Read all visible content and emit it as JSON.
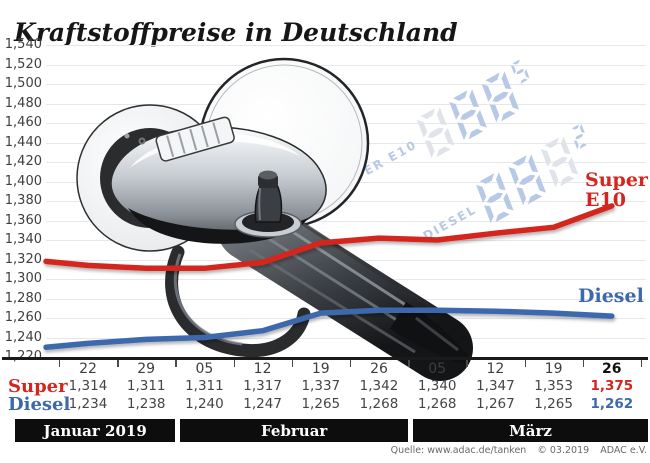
{
  "title": "Kraftstoffpreise in Deutschland",
  "source": {
    "quelle": "Quelle: www.adac.de/tanken",
    "copyright": "© 03.2019",
    "org": "ADAC e.V."
  },
  "colors": {
    "super_red": "#d4251e",
    "diesel_blue": "#3c68ad",
    "grid": "#e6e7e8",
    "month_band": "#0d0d0d",
    "axis": "#1a1a1a",
    "watermark_blue": "#b7c9e7",
    "watermark_gray": "#e0e4ea",
    "text_dark": "#3f3f3f"
  },
  "watermark": {
    "rows": [
      {
        "label": "SUPER E10",
        "digits": "888",
        "sup": "5"
      },
      {
        "label": "DIESEL",
        "digits": "888",
        "sup": "2"
      }
    ]
  },
  "chart_data": {
    "type": "line",
    "title": "Kraftstoffpreise in Deutschland",
    "grid": true,
    "legend_position": "inline-right",
    "y_axis": {
      "min": 1220,
      "max": 1540,
      "step": 20,
      "tick_labels_format": "1,540 … 1,220"
    },
    "categories": [
      "22",
      "29",
      "05",
      "12",
      "19",
      "26",
      "05",
      "12",
      "19",
      "26"
    ],
    "months": [
      {
        "label": "Januar 2019",
        "ticks": 2
      },
      {
        "label": "Februar",
        "ticks": 4
      },
      {
        "label": "März",
        "ticks": 4
      }
    ],
    "series": [
      {
        "name": "Super",
        "line_label": "Super E10",
        "color": "#d4251e",
        "values": [
          1314,
          1311,
          1311,
          1317,
          1337,
          1342,
          1340,
          1347,
          1353,
          1375
        ],
        "left_edge_value": 1318
      },
      {
        "name": "Diesel",
        "line_label": "Diesel",
        "color": "#3c68ad",
        "values": [
          1234,
          1238,
          1240,
          1247,
          1265,
          1268,
          1268,
          1267,
          1265,
          1262
        ],
        "left_edge_value": 1230
      }
    ],
    "value_display_format": "comma-decimal e.g. 1,314",
    "highlight_last_column": true
  }
}
